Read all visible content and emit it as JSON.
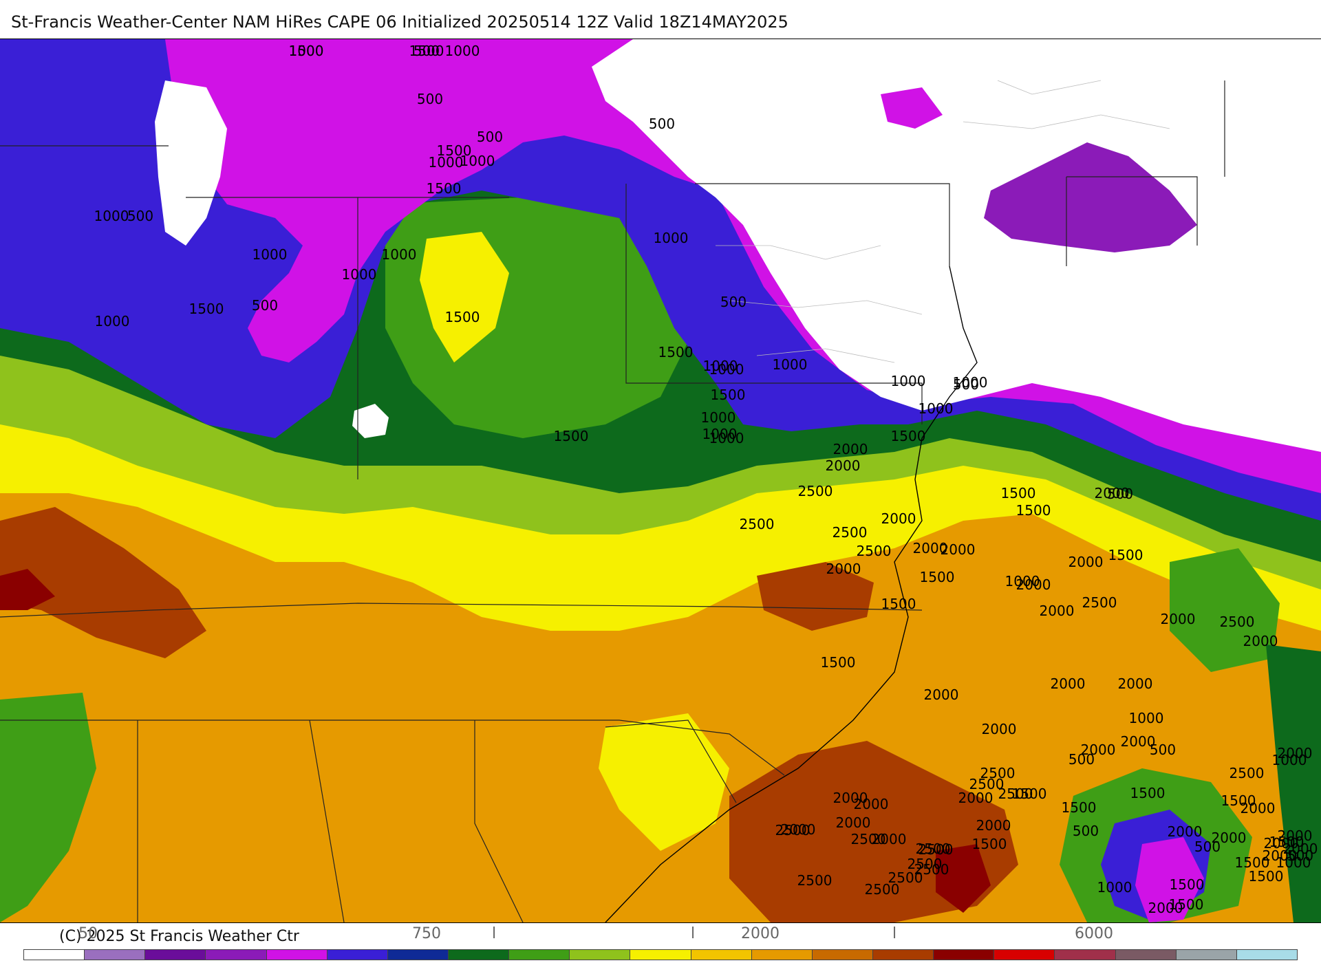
{
  "header": {
    "title": "St-Francis Weather-Center NAM HiRes CAPE  06 Initialized 20250514 12Z Valid 18Z14MAY2025"
  },
  "footer": {
    "copyright": "(C) 2025 St Francis Weather Ctr",
    "colorbar_ticks": [
      "50",
      "750",
      "l",
      "l",
      "2000",
      "l",
      "6000"
    ]
  },
  "colors": {
    "white": "#ffffff",
    "lavender": "#9a6fbf",
    "deep_purple": "#6a0d9a",
    "purple": "#8b1bb8",
    "magenta": "#d012e6",
    "blue": "#3a1fd6",
    "navy": "#0f2a96",
    "dark_green": "#0d6a1c",
    "green": "#3f9e16",
    "yellow_green": "#8fc21c",
    "yellow": "#f6f000",
    "gold": "#f2c400",
    "orange": "#e69a00",
    "dark_orange": "#c86a00",
    "brown": "#a83c00",
    "dark_red": "#8a0000",
    "red": "#d80000",
    "crimson": "#a0304a",
    "mauve": "#7a5a64",
    "gray": "#9aa4a8",
    "light_blue": "#a8dce8"
  },
  "colorbar_colors": [
    "#ffffff",
    "#9a6fbf",
    "#6a0d9a",
    "#8b1bb8",
    "#d012e6",
    "#3a1fd6",
    "#0f2a96",
    "#0d6a1c",
    "#3f9e16",
    "#8fc21c",
    "#f6f000",
    "#f2c400",
    "#e69a00",
    "#c86a00",
    "#a83c00",
    "#8a0000",
    "#d80000",
    "#a0304a",
    "#7a5a64",
    "#9aa4a8",
    "#a8dce8"
  ],
  "contour_labels": [
    "1000",
    "500",
    "1000",
    "500",
    "500",
    "1500",
    "1000",
    "1000",
    "500",
    "1000",
    "500",
    "1500",
    "1000",
    "1000",
    "1000",
    "500",
    "1000",
    "500",
    "1000",
    "1500",
    "1500",
    "1500",
    "1000",
    "1000",
    "1000",
    "1000",
    "500",
    "1000",
    "1500",
    "1000",
    "1000",
    "1000",
    "1000",
    "1500",
    "1500",
    "2000",
    "2500",
    "2000",
    "2500",
    "2500",
    "2500",
    "2000",
    "2000",
    "1500",
    "1500",
    "2000",
    "2000",
    "2500",
    "2000",
    "2000",
    "1000",
    "1500",
    "500",
    "2000",
    "1500",
    "2000",
    "1500",
    "2000",
    "2500",
    "2000",
    "2000",
    "2000",
    "2000",
    "1500",
    "2000",
    "2000",
    "2000",
    "2000",
    "2000",
    "2000",
    "2500",
    "2500",
    "2500",
    "2500",
    "2500",
    "2500",
    "2000",
    "2500",
    "2500",
    "1500",
    "1000",
    "500",
    "1500",
    "2000",
    "1500",
    "500",
    "1500",
    "2000",
    "1500",
    "1000",
    "500",
    "1500",
    "2000",
    "1000",
    "500",
    "1500",
    "2000",
    "2000",
    "2000",
    "2000",
    "2000",
    "1500",
    "2000",
    "1500",
    "2000",
    "2000",
    "2500",
    "2500",
    "2500",
    "2500",
    "2500",
    "1500",
    "1000",
    "500",
    "2000",
    "1500",
    "1500"
  ]
}
